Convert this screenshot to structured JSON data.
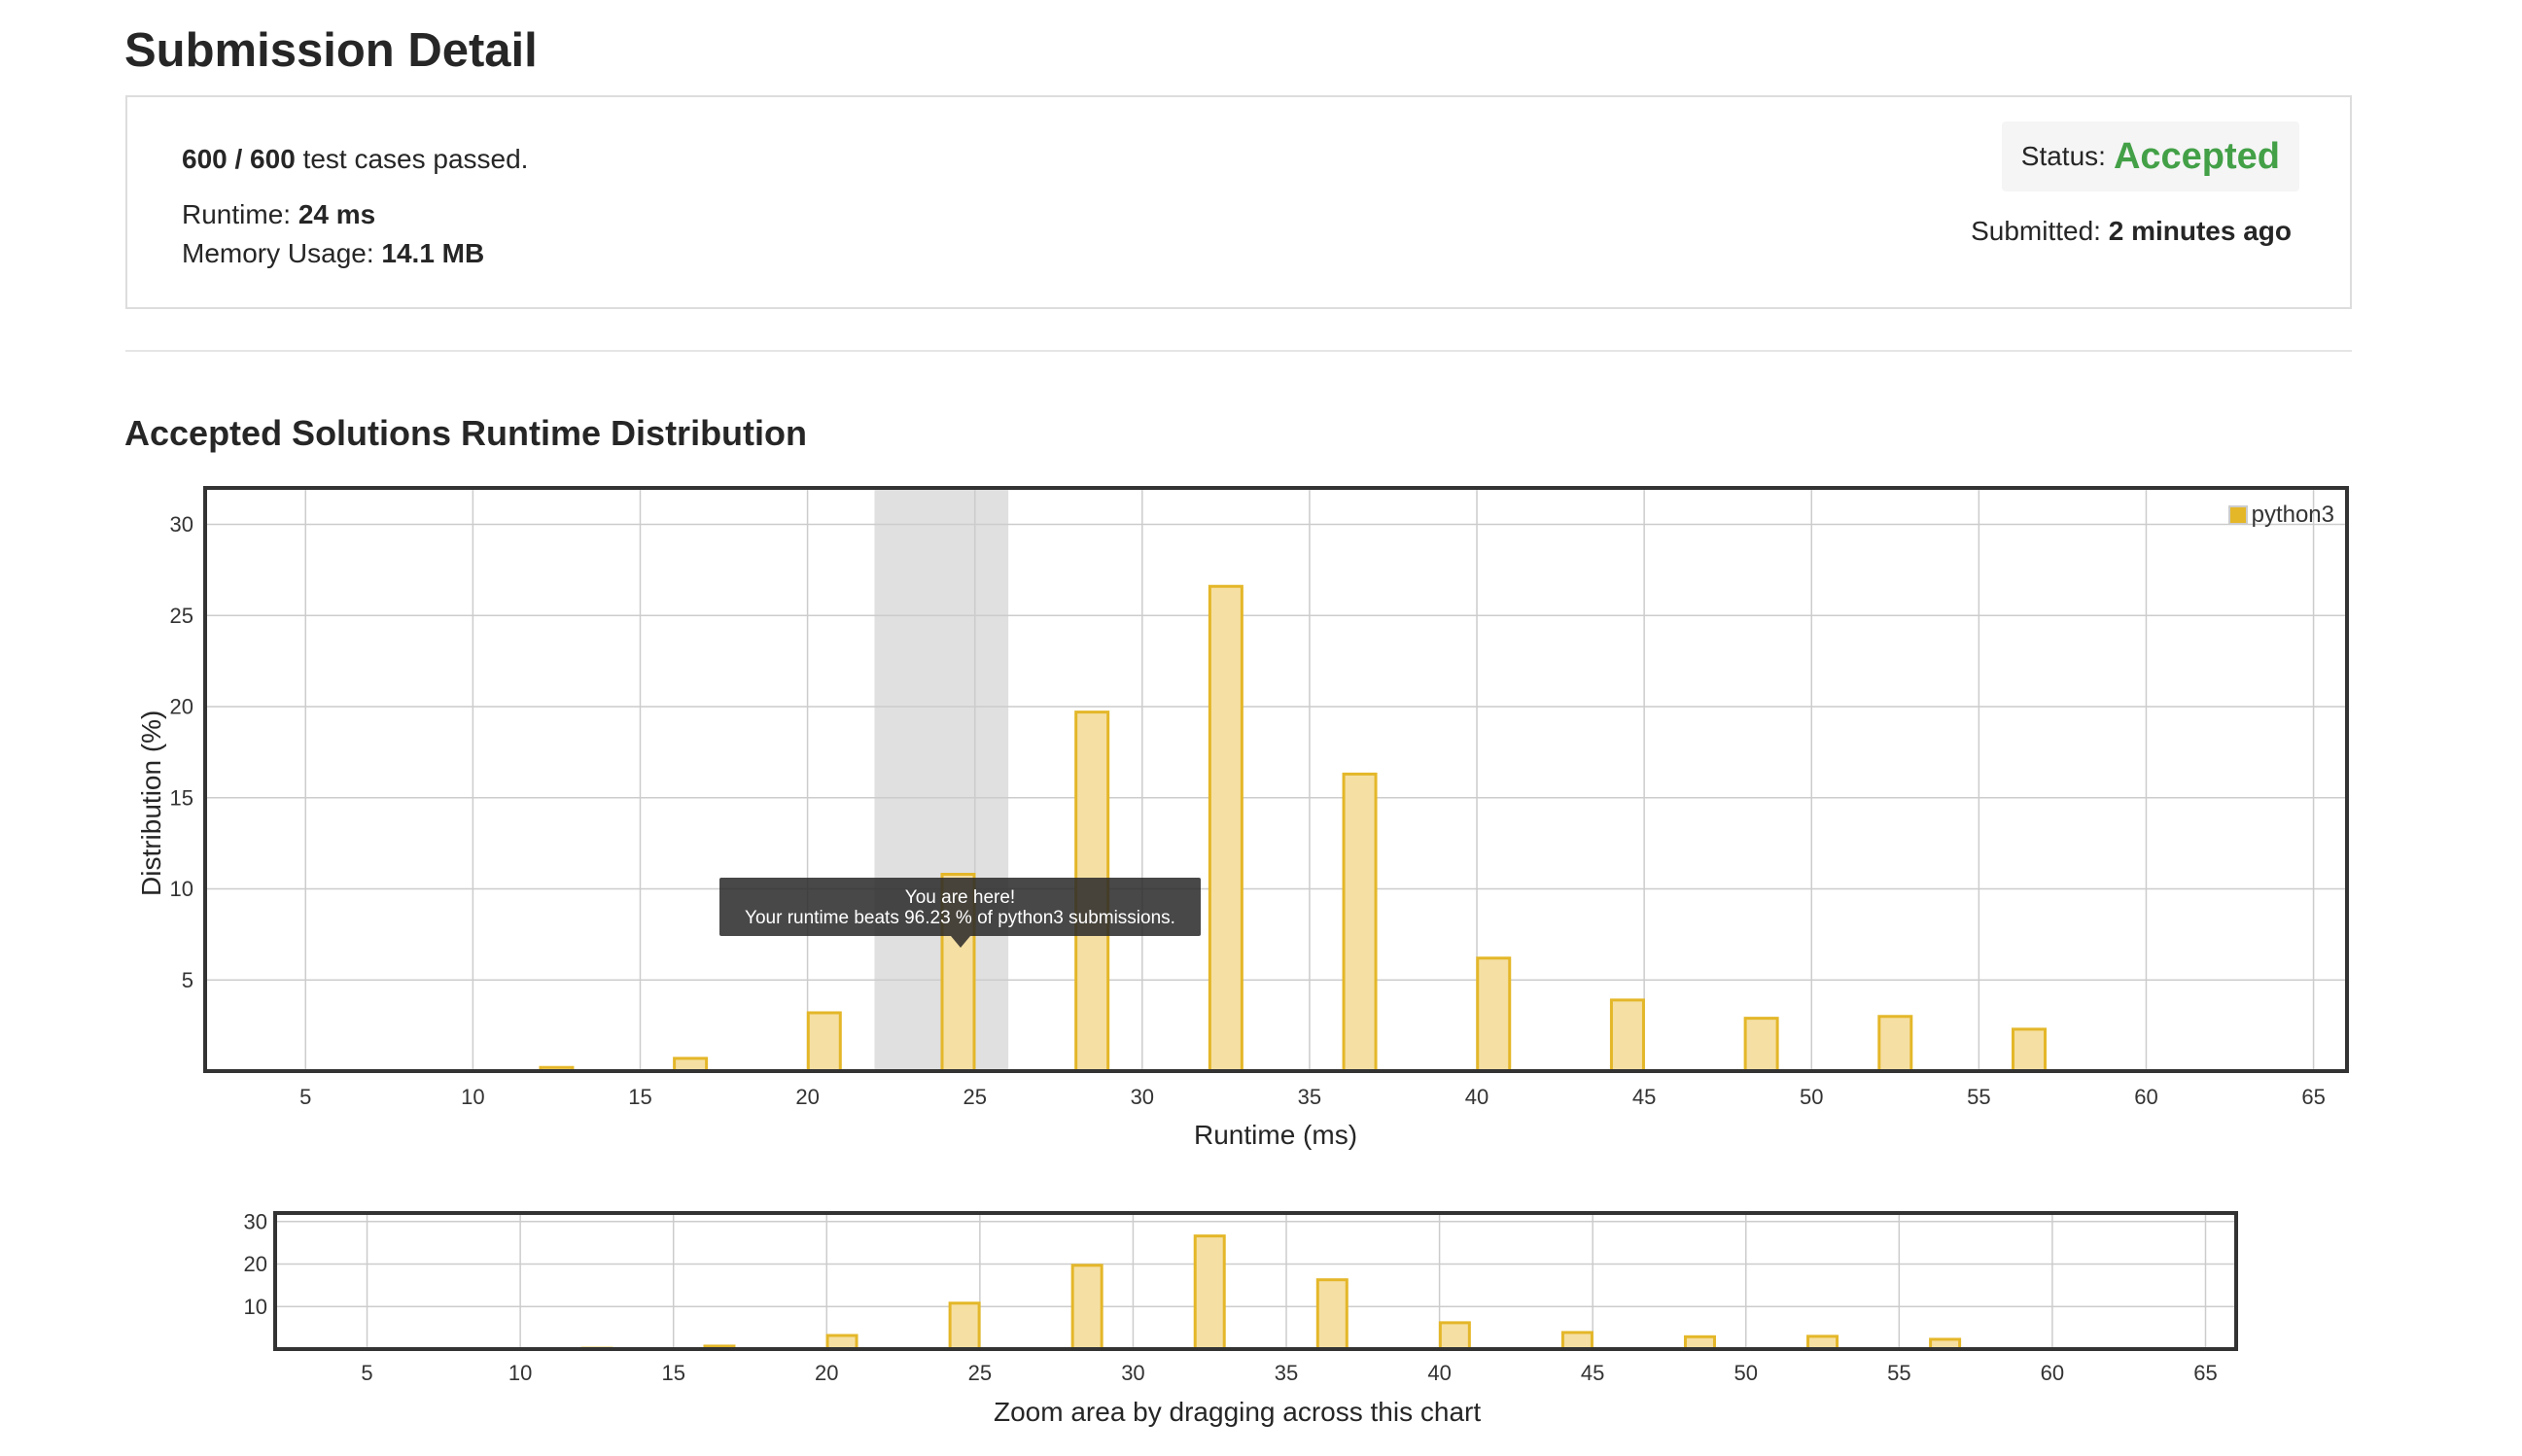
{
  "page": {
    "title": "Submission Detail"
  },
  "summary": {
    "tests_passed": "600 / 600",
    "tests_suffix": "test cases passed.",
    "runtime_label": "Runtime:",
    "runtime_value": "24 ms",
    "memory_label": "Memory Usage:",
    "memory_value": "14.1 MB",
    "status_label": "Status:",
    "status_value": "Accepted",
    "submitted_label": "Submitted:",
    "submitted_value": "2 minutes ago"
  },
  "section": {
    "title": "Accepted Solutions Runtime Distribution"
  },
  "colors": {
    "bar_fill": "#f5dfa3",
    "bar_stroke": "#e4b729",
    "status_accepted": "#43a047",
    "highlight_band": "#e0e0e0"
  },
  "tooltip": {
    "line1": "You are here!",
    "line2": "Your runtime beats 96.23 % of python3 submissions."
  },
  "overview": {
    "caption": "Zoom area by dragging across this chart"
  },
  "chart_data": [
    {
      "type": "bar",
      "xlabel": "Runtime (ms)",
      "ylabel": "Distribution (%)",
      "xlim": [
        2,
        66
      ],
      "ylim": [
        0,
        32
      ],
      "xticks": [
        5,
        10,
        15,
        20,
        25,
        30,
        35,
        40,
        45,
        50,
        55,
        60,
        65
      ],
      "yticks": [
        5,
        10,
        15,
        20,
        25,
        30
      ],
      "grid": true,
      "legend": "top-right",
      "highlight_range": [
        22,
        26
      ],
      "series": [
        {
          "name": "python3",
          "x": [
            12.5,
            16.5,
            20.5,
            24.5,
            28.5,
            32.5,
            36.5,
            40.5,
            44.5,
            48.5,
            52.5,
            56.5
          ],
          "values": [
            0.2,
            0.7,
            3.2,
            10.8,
            19.7,
            26.6,
            16.3,
            6.2,
            3.9,
            2.9,
            3.0,
            2.3
          ]
        }
      ]
    },
    {
      "type": "bar",
      "xlim": [
        2,
        66
      ],
      "ylim": [
        0,
        32
      ],
      "xticks": [
        5,
        10,
        15,
        20,
        25,
        30,
        35,
        40,
        45,
        50,
        55,
        60,
        65
      ],
      "yticks": [
        10,
        20,
        30
      ],
      "grid": true,
      "series": [
        {
          "name": "python3",
          "x": [
            12.5,
            16.5,
            20.5,
            24.5,
            28.5,
            32.5,
            36.5,
            40.5,
            44.5,
            48.5,
            52.5,
            56.5
          ],
          "values": [
            0.2,
            0.7,
            3.2,
            10.8,
            19.7,
            26.6,
            16.3,
            6.2,
            3.9,
            2.9,
            3.0,
            2.3
          ]
        }
      ]
    }
  ]
}
